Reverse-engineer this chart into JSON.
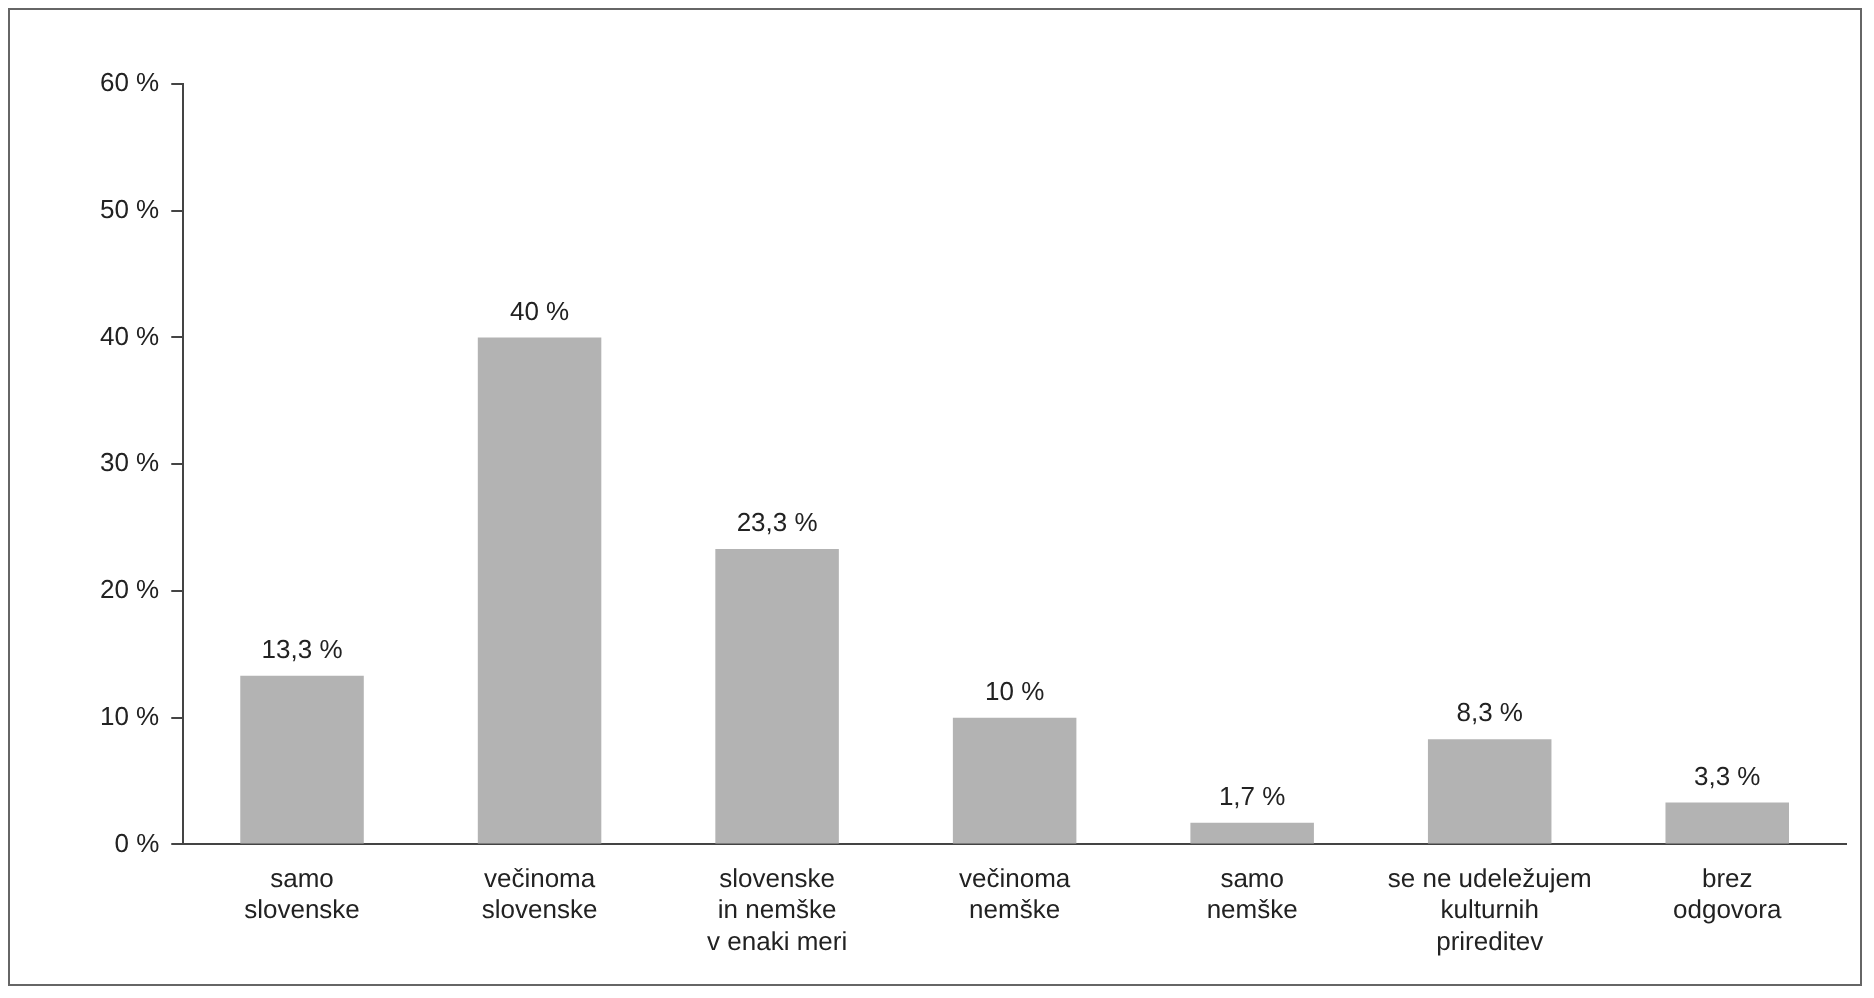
{
  "chart_data": {
    "type": "bar",
    "categories": [
      "samo\nslovenske",
      "večinoma\nslovenske",
      "slovenske\nin nemške\nv enaki meri",
      "večinoma\nnemške",
      "samo\nnemške",
      "se ne udeležujem\nkulturnih\nprireditev",
      "brez\nodgovora"
    ],
    "values": [
      13.3,
      40,
      23.3,
      10,
      1.7,
      8.3,
      3.3
    ],
    "value_labels": [
      "13,3 %",
      "40 %",
      "23,3 %",
      "10 %",
      "1,7 %",
      "8,3 %",
      "3,3 %"
    ],
    "color": "#b3b3b3",
    "ylim": [
      0,
      60
    ],
    "yticks": [
      {
        "value": 0,
        "label": "0 %"
      },
      {
        "value": 10,
        "label": "10 %"
      },
      {
        "value": 20,
        "label": "20 %"
      },
      {
        "value": 30,
        "label": "30 %"
      },
      {
        "value": 40,
        "label": "40 %"
      },
      {
        "value": 50,
        "label": "50 %"
      },
      {
        "value": 60,
        "label": "60 %"
      }
    ],
    "grid": false,
    "legend": false
  }
}
